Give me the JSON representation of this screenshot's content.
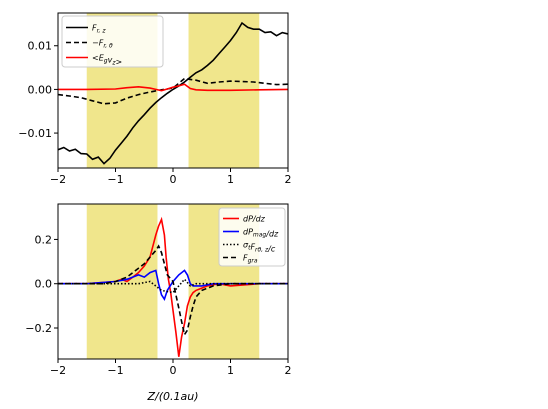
{
  "figure": {
    "xlabel": "Z/(0.1au)"
  },
  "chart_data": [
    {
      "type": "line",
      "panel": "top",
      "xlim": [
        -2,
        2
      ],
      "ylim": [
        -0.018,
        0.0175
      ],
      "xticks": [
        -2,
        -1,
        0,
        1,
        2
      ],
      "yticks": [
        -0.01,
        0.0,
        0.01
      ],
      "xtick_labels": [
        "−2",
        "−1",
        "0",
        "1",
        "2"
      ],
      "ytick_labels": [
        "−0.01",
        "0.00",
        "0.01"
      ],
      "grid": false,
      "legend_position": "top-left",
      "shaded_regions": [
        [
          -1.5,
          -0.27
        ],
        [
          0.27,
          1.5
        ]
      ],
      "shade_color": "#f0e68c",
      "series": [
        {
          "name": "F_{r,z}",
          "label_main": "F",
          "label_sub": "r, z",
          "color": "#000000",
          "dash": "solid",
          "x": [
            -2.0,
            -1.9,
            -1.8,
            -1.7,
            -1.6,
            -1.5,
            -1.4,
            -1.3,
            -1.2,
            -1.1,
            -1.0,
            -0.9,
            -0.8,
            -0.7,
            -0.6,
            -0.5,
            -0.4,
            -0.3,
            -0.2,
            -0.1,
            0.0,
            0.1,
            0.2,
            0.3,
            0.4,
            0.5,
            0.6,
            0.7,
            0.8,
            0.9,
            1.0,
            1.1,
            1.2,
            1.3,
            1.4,
            1.5,
            1.6,
            1.7,
            1.8,
            1.9,
            2.0
          ],
          "y": [
            -0.0138,
            -0.0133,
            -0.0141,
            -0.0137,
            -0.0147,
            -0.0148,
            -0.016,
            -0.0155,
            -0.017,
            -0.0158,
            -0.0139,
            -0.0123,
            -0.0107,
            -0.0088,
            -0.0072,
            -0.0058,
            -0.0043,
            -0.003,
            -0.0019,
            -0.0009,
            0.0,
            0.0008,
            0.0017,
            0.0028,
            0.0038,
            0.0045,
            0.0055,
            0.0067,
            0.0082,
            0.0097,
            0.0112,
            0.013,
            0.0152,
            0.0142,
            0.0138,
            0.0138,
            0.013,
            0.0132,
            0.0123,
            0.013,
            0.0127
          ]
        },
        {
          "name": "−F_{r,θ}",
          "label_main": "−F",
          "label_sub": "r, θ",
          "color": "#000000",
          "dash": "dashed",
          "x": [
            -2.0,
            -1.8,
            -1.6,
            -1.4,
            -1.2,
            -1.0,
            -0.8,
            -0.6,
            -0.4,
            -0.2,
            0.0,
            0.2,
            0.3,
            0.4,
            0.6,
            0.8,
            1.0,
            1.2,
            1.4,
            1.6,
            1.8,
            2.0
          ],
          "y": [
            -0.0012,
            -0.0015,
            -0.0019,
            -0.0026,
            -0.0033,
            -0.0031,
            -0.002,
            -0.0012,
            -0.0006,
            -0.0001,
            0.0003,
            0.0025,
            0.0023,
            0.0021,
            0.0014,
            0.0017,
            0.0019,
            0.0018,
            0.0017,
            0.0014,
            0.0011,
            0.0012
          ]
        },
        {
          "name": "<E_g v_z>",
          "label_main": "<E",
          "label_sub": "g",
          "label_tail": "v",
          "label_sub2": "z",
          "label_end": ">",
          "color": "#ff0000",
          "dash": "solid",
          "x": [
            -2.0,
            -1.5,
            -1.0,
            -0.8,
            -0.6,
            -0.4,
            -0.3,
            -0.2,
            -0.1,
            0.0,
            0.1,
            0.2,
            0.3,
            0.4,
            0.6,
            1.0,
            1.5,
            2.0
          ],
          "y": [
            0.0,
            0.0,
            0.0001,
            0.0004,
            0.0006,
            0.0003,
            0.0,
            -0.0003,
            0.0001,
            0.0005,
            0.0008,
            0.0012,
            0.0002,
            -0.0001,
            -0.0002,
            -0.0002,
            -0.0001,
            0.0
          ]
        }
      ]
    },
    {
      "type": "line",
      "panel": "bottom",
      "xlim": [
        -2,
        2
      ],
      "ylim": [
        -0.34,
        0.36
      ],
      "xticks": [
        -2,
        -1,
        0,
        1,
        2
      ],
      "yticks": [
        -0.2,
        0.0,
        0.2
      ],
      "xtick_labels": [
        "−2",
        "−1",
        "0",
        "1",
        "2"
      ],
      "ytick_labels": [
        "−0.2",
        "0.0",
        "0.2"
      ],
      "grid": false,
      "legend_position": "top-right",
      "shaded_regions": [
        [
          -1.5,
          -0.27
        ],
        [
          0.27,
          1.5
        ]
      ],
      "shade_color": "#f0e68c",
      "series": [
        {
          "name": "dP/dz",
          "label_main": "dP/dz",
          "color": "#ff0000",
          "dash": "solid",
          "x": [
            -2.0,
            -1.5,
            -1.0,
            -0.9,
            -0.8,
            -0.7,
            -0.6,
            -0.5,
            -0.4,
            -0.35,
            -0.3,
            -0.25,
            -0.2,
            -0.15,
            -0.12,
            -0.08,
            -0.04,
            0.0,
            0.05,
            0.1,
            0.15,
            0.2,
            0.25,
            0.3,
            0.35,
            0.4,
            0.5,
            0.6,
            0.8,
            1.0,
            1.5,
            2.0
          ],
          "y": [
            0.0,
            0.0,
            0.01,
            0.02,
            0.01,
            0.03,
            0.05,
            0.08,
            0.12,
            0.17,
            0.22,
            0.26,
            0.29,
            0.22,
            0.12,
            0.02,
            -0.04,
            -0.12,
            -0.22,
            -0.33,
            -0.24,
            -0.18,
            -0.1,
            -0.06,
            -0.04,
            -0.03,
            -0.02,
            -0.01,
            0.0,
            -0.01,
            0.0,
            0.0
          ]
        },
        {
          "name": "dP_mag/dz",
          "label_main": "dP",
          "label_sub": "mag",
          "label_tail": "/dz",
          "color": "#0000ff",
          "dash": "solid",
          "x": [
            -2.0,
            -1.5,
            -1.0,
            -0.8,
            -0.6,
            -0.5,
            -0.4,
            -0.3,
            -0.25,
            -0.2,
            -0.15,
            -0.1,
            0.0,
            0.1,
            0.2,
            0.25,
            0.3,
            0.35,
            0.4,
            0.5,
            0.7,
            1.0,
            1.5,
            2.0
          ],
          "y": [
            0.0,
            0.0,
            0.01,
            0.02,
            0.04,
            0.03,
            0.05,
            0.06,
            0.0,
            -0.05,
            -0.07,
            -0.03,
            0.01,
            0.04,
            0.06,
            0.04,
            0.0,
            -0.01,
            -0.01,
            -0.01,
            0.0,
            0.0,
            0.0,
            0.0
          ]
        },
        {
          "name": "σ_t F_{r θ, z}/c",
          "label_main": "σ",
          "label_sub": "t",
          "label_tail": "F",
          "label_sub2": "rθ, z",
          "label_end": "/c",
          "color": "#000000",
          "dash": "dotted",
          "x": [
            -2.0,
            -1.5,
            -1.0,
            -0.6,
            -0.4,
            -0.2,
            0.0,
            0.2,
            0.3,
            0.4,
            0.6,
            1.0,
            1.5,
            2.0
          ],
          "y": [
            0.0,
            0.0,
            0.0,
            0.0,
            0.01,
            -0.03,
            -0.04,
            0.02,
            -0.01,
            0.0,
            0.0,
            0.0,
            0.0,
            0.0
          ]
        },
        {
          "name": "F_gra",
          "label_main": "F",
          "label_sub": "gra",
          "color": "#000000",
          "dash": "dashed",
          "x": [
            -2.0,
            -1.5,
            -1.2,
            -1.0,
            -0.9,
            -0.8,
            -0.7,
            -0.6,
            -0.5,
            -0.4,
            -0.3,
            -0.25,
            -0.2,
            -0.15,
            -0.1,
            0.0,
            0.05,
            0.1,
            0.15,
            0.2,
            0.25,
            0.3,
            0.35,
            0.4,
            0.5,
            0.7,
            1.0,
            1.5,
            2.0
          ],
          "y": [
            0.0,
            0.0,
            0.0,
            0.01,
            0.02,
            0.03,
            0.05,
            0.07,
            0.09,
            0.12,
            0.15,
            0.17,
            0.14,
            0.09,
            0.04,
            0.01,
            -0.05,
            -0.11,
            -0.17,
            -0.23,
            -0.21,
            -0.15,
            -0.1,
            -0.06,
            -0.03,
            -0.01,
            0.0,
            0.0,
            0.0
          ]
        }
      ]
    }
  ]
}
